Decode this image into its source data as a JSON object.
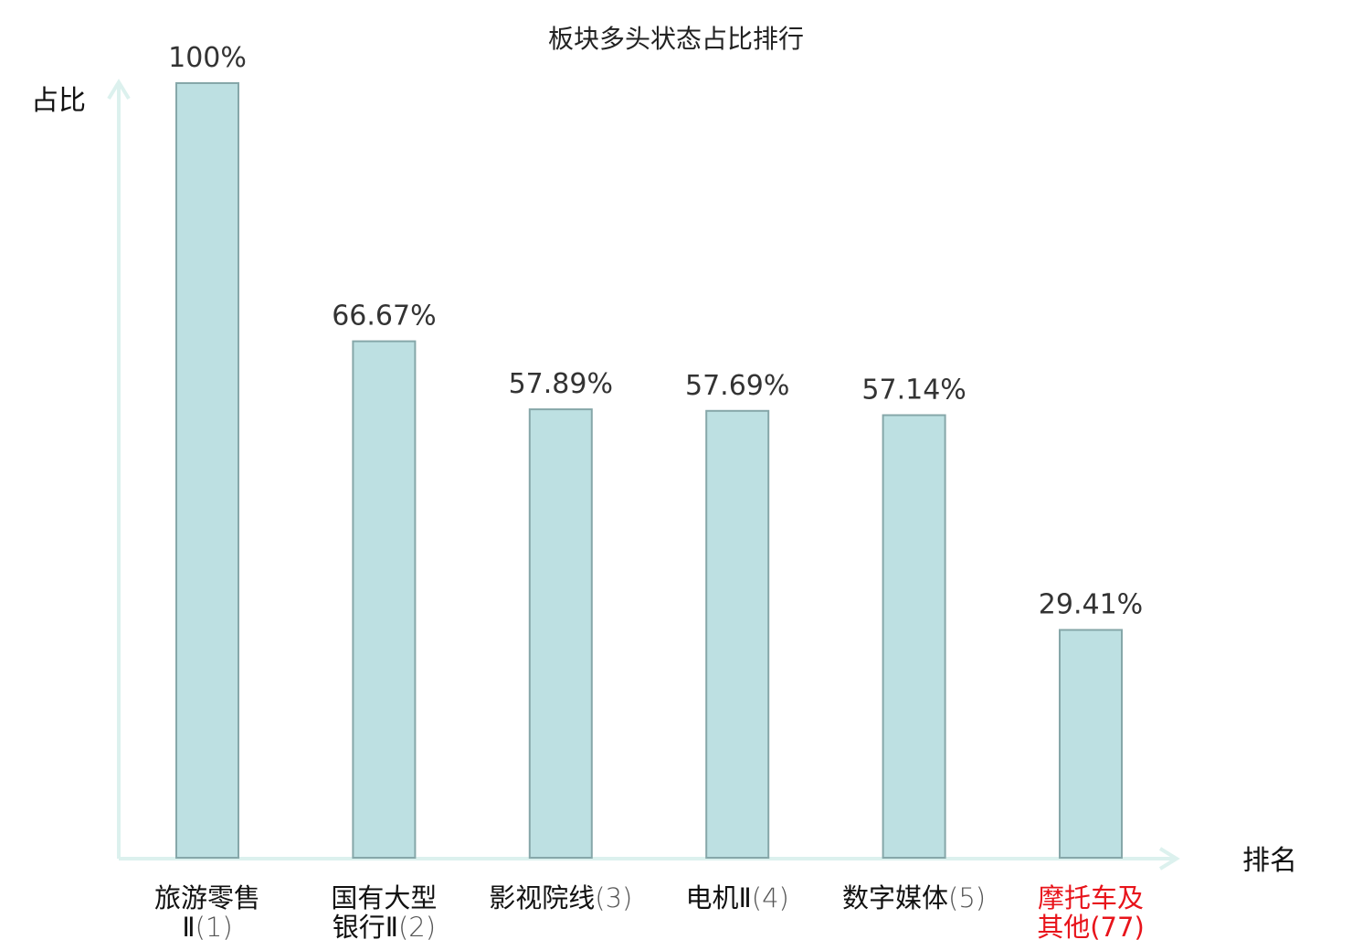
{
  "chart_data": {
    "type": "bar",
    "title": "板块多头状态占比排行",
    "ylabel": "占比",
    "xlabel": "排名",
    "ylim": [
      0,
      100
    ],
    "grid": false,
    "categories": [
      {
        "lines": [
          "旅游零售",
          "Ⅱ"
        ],
        "rank": "(1)",
        "highlight": false
      },
      {
        "lines": [
          "国有大型",
          "银行Ⅱ"
        ],
        "rank": "(2)",
        "highlight": false
      },
      {
        "lines": [
          "影视院线"
        ],
        "rank": "(3)",
        "highlight": false
      },
      {
        "lines": [
          "电机Ⅱ"
        ],
        "rank": "(4)",
        "highlight": false
      },
      {
        "lines": [
          "数字媒体"
        ],
        "rank": "(5)",
        "highlight": false
      },
      {
        "lines": [
          "摩托车及",
          "其他"
        ],
        "rank": "(77)",
        "highlight": true
      }
    ],
    "values": [
      100,
      66.67,
      57.89,
      57.69,
      57.14,
      29.41
    ],
    "value_labels": [
      "100%",
      "66.67%",
      "57.89%",
      "57.69%",
      "57.14%",
      "29.41%"
    ]
  },
  "colors": {
    "bar_fill": "#bde0e2",
    "bar_stroke": "#86a7a9",
    "axis": "#dcf1ee",
    "highlight_text": "#e8141b",
    "normal_text": "#111111",
    "value_text": "#333333"
  }
}
